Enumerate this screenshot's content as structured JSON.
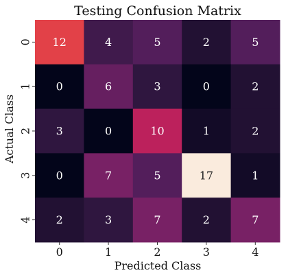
{
  "chart_data": {
    "type": "heatmap",
    "title": "Testing Confusion Matrix",
    "xlabel": "Predicted Class",
    "ylabel": "Actual Class",
    "x_categories": [
      "0",
      "1",
      "2",
      "3",
      "4"
    ],
    "y_categories": [
      "0",
      "1",
      "2",
      "3",
      "4"
    ],
    "values": [
      [
        12,
        4,
        5,
        2,
        5
      ],
      [
        0,
        6,
        3,
        0,
        2
      ],
      [
        3,
        0,
        10,
        1,
        2
      ],
      [
        0,
        7,
        5,
        17,
        1
      ],
      [
        2,
        3,
        7,
        2,
        7
      ]
    ],
    "value_range": [
      0,
      17
    ],
    "colormap": "rocket",
    "annotations": true,
    "colorbar": false,
    "grid": false
  }
}
